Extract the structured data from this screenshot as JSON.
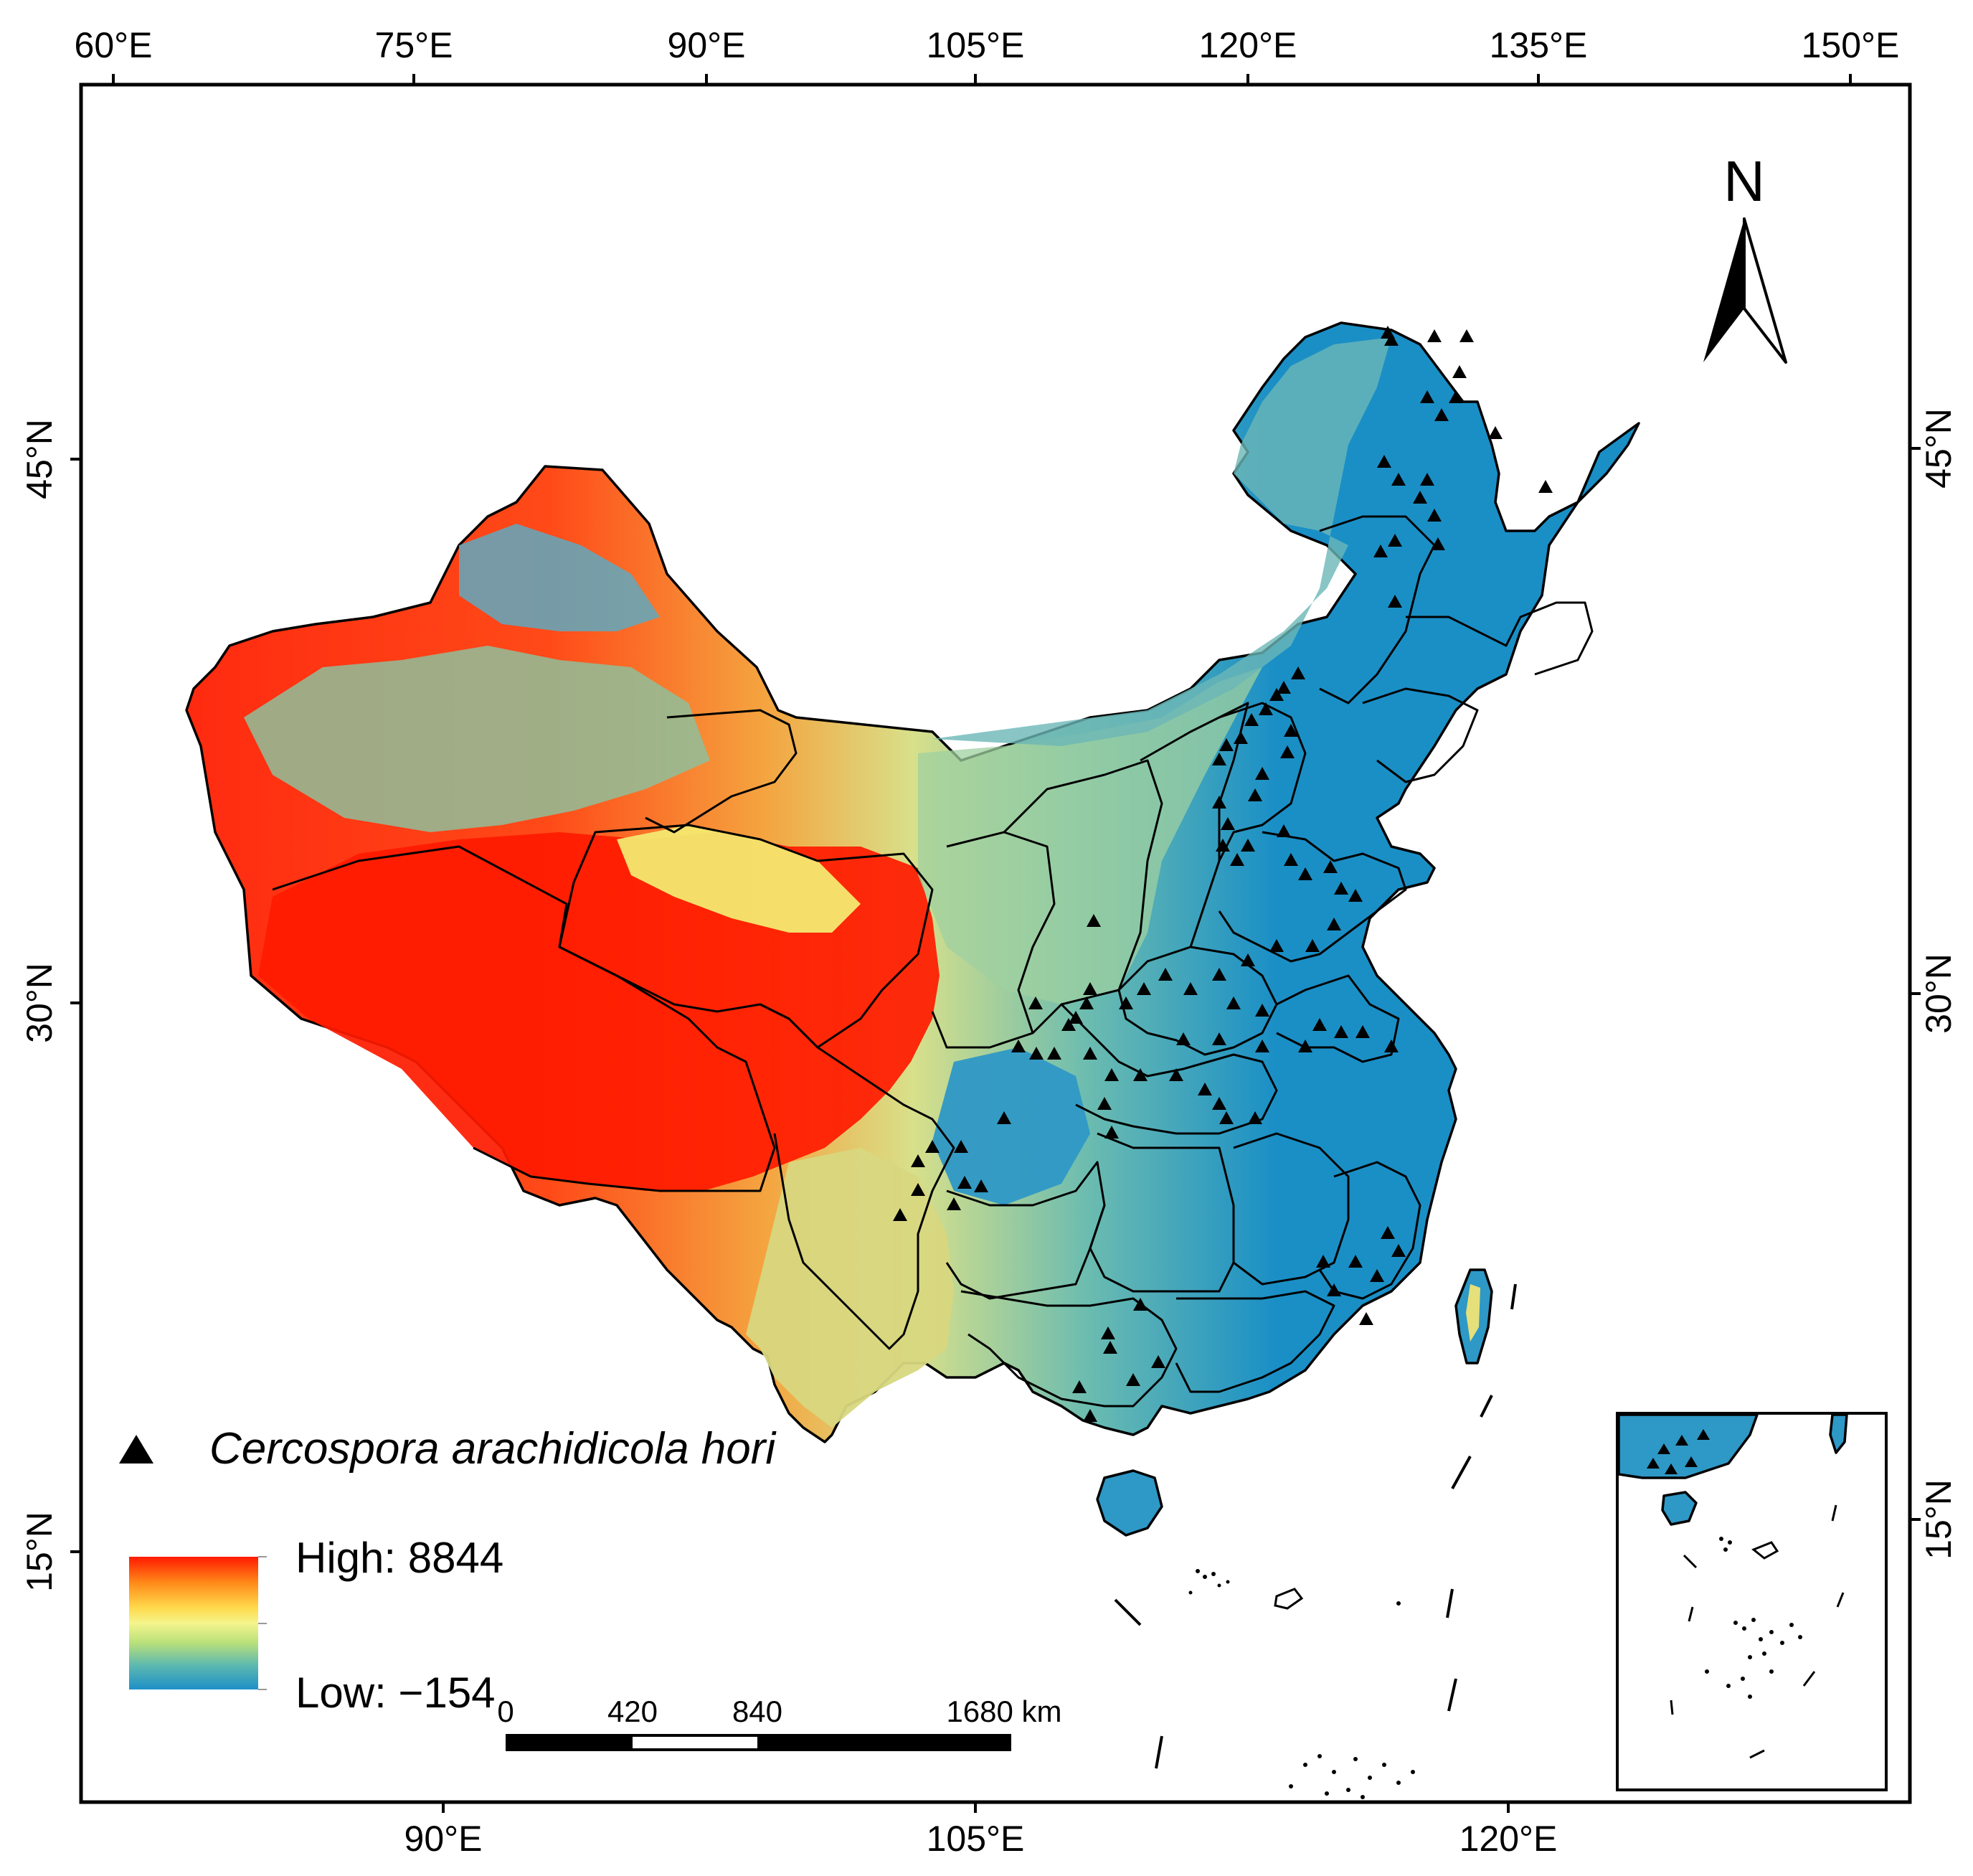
{
  "map": {
    "top_axis_labels": [
      "60°E",
      "75°E",
      "90°E",
      "105°E",
      "120°E",
      "135°E",
      "150°E"
    ],
    "bottom_axis_labels": [
      "90°E",
      "105°E",
      "120°E"
    ],
    "left_axis_labels": [
      "45°N",
      "30°N",
      "15°N"
    ],
    "right_axis_labels": [
      "45°N",
      "30°N",
      "15°N"
    ],
    "north_arrow_label": "N",
    "legend": {
      "species": "Cercospora arachidicola hori",
      "high": "High: 8844",
      "low": "Low: −154",
      "gradient_colors": [
        "#ff1a00",
        "#ff8c1a",
        "#ffd84a",
        "#f5f58c",
        "#b8e07a",
        "#5cb8b0",
        "#1e90c8"
      ]
    },
    "scale_bar": {
      "labels": [
        "0",
        "420",
        "840",
        "1680 km"
      ]
    },
    "colors": {
      "high_elevation": "#ff1a00",
      "mid_elevation": "#f2e26b",
      "low_elevation": "#1a8fc6",
      "marker": "#000000"
    },
    "occurrence_marker": "black-triangle"
  }
}
